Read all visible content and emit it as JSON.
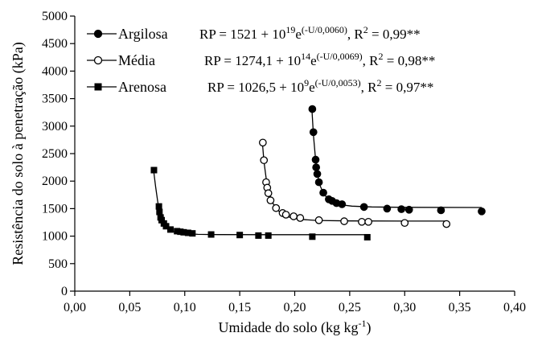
{
  "chart_data": {
    "type": "scatter",
    "xlabel": "Umidade do solo (kg kg-1)",
    "xlabel_main": "Umidade do solo (kg kg",
    "xlabel_sup": "-1",
    "xlabel_close": ")",
    "ylabel": "Resistência do solo à penetração (kPa)",
    "xlim": [
      0,
      0.4
    ],
    "ylim": [
      0,
      5000
    ],
    "x_ticks": [
      0,
      0.05,
      0.1,
      0.15,
      0.2,
      0.25,
      0.3,
      0.35,
      0.4
    ],
    "x_tick_labels": [
      "0,00",
      "0,05",
      "0,10",
      "0,15",
      "0,20",
      "0,25",
      "0,30",
      "0,35",
      "0,40"
    ],
    "y_ticks": [
      0,
      500,
      1000,
      1500,
      2000,
      2500,
      3000,
      3500,
      4000,
      4500,
      5000
    ],
    "y_tick_labels": [
      "0",
      "500",
      "1000",
      "1500",
      "2000",
      "2500",
      "3000",
      "3500",
      "4000",
      "4500",
      "5000"
    ],
    "grid": false,
    "legend_position": "top-left",
    "series": [
      {
        "name": "Argilosa",
        "marker": "filled-circle",
        "equation": {
          "main": "RP = 1521 + 10",
          "exp1": "19",
          "mid": "e",
          "exp2": "(-U/0,0060)",
          "tail": ",    R",
          "exp3": "2",
          "end": " = 0,99**"
        },
        "points": [
          [
            0.216,
            3310
          ],
          [
            0.217,
            2890
          ],
          [
            0.219,
            2390
          ],
          [
            0.2195,
            2250
          ],
          [
            0.2205,
            2130
          ],
          [
            0.222,
            1980
          ],
          [
            0.226,
            1790
          ],
          [
            0.231,
            1670
          ],
          [
            0.234,
            1640
          ],
          [
            0.238,
            1600
          ],
          [
            0.243,
            1580
          ],
          [
            0.263,
            1530
          ],
          [
            0.284,
            1500
          ],
          [
            0.297,
            1490
          ],
          [
            0.304,
            1480
          ],
          [
            0.333,
            1470
          ],
          [
            0.37,
            1450
          ]
        ],
        "curve": [
          [
            0.2155,
            3350
          ],
          [
            0.217,
            2850
          ],
          [
            0.219,
            2380
          ],
          [
            0.221,
            2100
          ],
          [
            0.223,
            1920
          ],
          [
            0.226,
            1780
          ],
          [
            0.23,
            1680
          ],
          [
            0.235,
            1615
          ],
          [
            0.242,
            1570
          ],
          [
            0.252,
            1545
          ],
          [
            0.27,
            1530
          ],
          [
            0.3,
            1523
          ],
          [
            0.37,
            1521
          ]
        ]
      },
      {
        "name": "Média",
        "marker": "open-circle",
        "equation": {
          "main": "RP = 1274,1 + 10",
          "exp1": "14",
          "mid": "e",
          "exp2": "(-U/0,0069)",
          "tail": ", R",
          "exp3": "2",
          "end": " = 0,98**"
        },
        "points": [
          [
            0.171,
            2700
          ],
          [
            0.172,
            2380
          ],
          [
            0.174,
            1980
          ],
          [
            0.175,
            1880
          ],
          [
            0.176,
            1780
          ],
          [
            0.178,
            1650
          ],
          [
            0.183,
            1510
          ],
          [
            0.189,
            1420
          ],
          [
            0.192,
            1390
          ],
          [
            0.199,
            1360
          ],
          [
            0.205,
            1330
          ],
          [
            0.222,
            1290
          ],
          [
            0.245,
            1270
          ],
          [
            0.261,
            1260
          ],
          [
            0.267,
            1260
          ],
          [
            0.3,
            1240
          ],
          [
            0.338,
            1220
          ]
        ],
        "curve": [
          [
            0.1705,
            2720
          ],
          [
            0.172,
            2360
          ],
          [
            0.174,
            2060
          ],
          [
            0.176,
            1840
          ],
          [
            0.179,
            1640
          ],
          [
            0.183,
            1500
          ],
          [
            0.188,
            1410
          ],
          [
            0.195,
            1345
          ],
          [
            0.205,
            1305
          ],
          [
            0.22,
            1285
          ],
          [
            0.25,
            1276
          ],
          [
            0.3,
            1274
          ],
          [
            0.338,
            1274
          ]
        ]
      },
      {
        "name": "Arenosa",
        "marker": "filled-square",
        "equation": {
          "main": "RP = 1026,5 + 10",
          "exp1": "9",
          "mid": "e",
          "exp2": "(-U/0,0053)",
          "tail": ",  R",
          "exp3": "2",
          "end": " = 0,97**"
        },
        "points": [
          [
            0.072,
            2200
          ],
          [
            0.0765,
            1540
          ],
          [
            0.077,
            1440
          ],
          [
            0.078,
            1340
          ],
          [
            0.079,
            1290
          ],
          [
            0.081,
            1230
          ],
          [
            0.083,
            1180
          ],
          [
            0.087,
            1120
          ],
          [
            0.093,
            1090
          ],
          [
            0.096,
            1080
          ],
          [
            0.099,
            1070
          ],
          [
            0.103,
            1060
          ],
          [
            0.107,
            1050
          ],
          [
            0.124,
            1030
          ],
          [
            0.15,
            1020
          ],
          [
            0.167,
            1010
          ],
          [
            0.176,
            1010
          ],
          [
            0.216,
            990
          ],
          [
            0.266,
            980
          ]
        ],
        "curve": [
          [
            0.0715,
            2220
          ],
          [
            0.0735,
            1900
          ],
          [
            0.0755,
            1620
          ],
          [
            0.0775,
            1420
          ],
          [
            0.0795,
            1280
          ],
          [
            0.082,
            1180
          ],
          [
            0.086,
            1110
          ],
          [
            0.092,
            1070
          ],
          [
            0.1,
            1045
          ],
          [
            0.112,
            1032
          ],
          [
            0.13,
            1028
          ],
          [
            0.18,
            1027
          ],
          [
            0.266,
            1026.5
          ]
        ]
      }
    ]
  }
}
